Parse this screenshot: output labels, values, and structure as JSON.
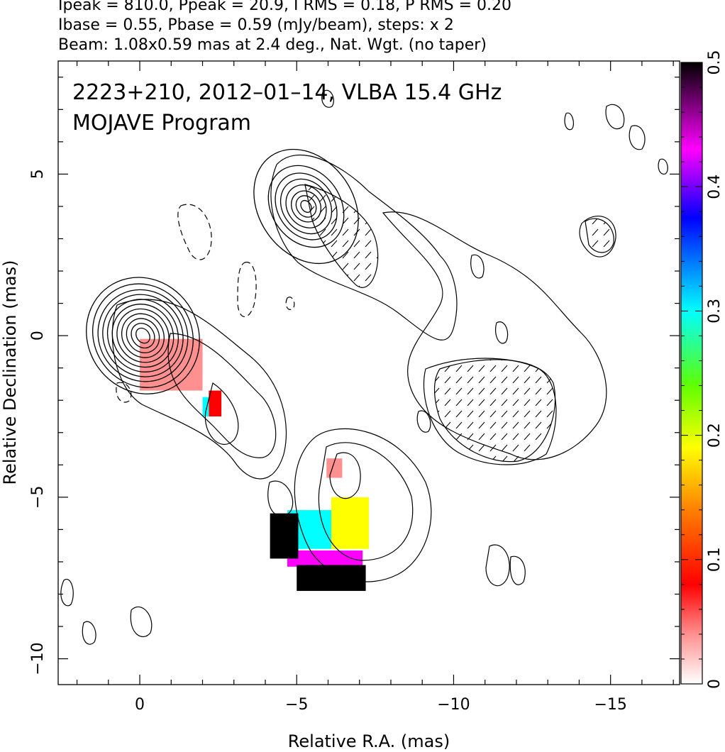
{
  "header": {
    "line1": "Ipeak = 810.0, Ppeak = 20.9, I RMS = 0.18, P RMS = 0.20",
    "line2": "Ibase = 0.55, Pbase = 0.59 (mJy/beam), steps: x 2",
    "line3": "Beam: 1.08x0.59 mas at 2.4 deg., Nat. Wgt. (no taper)"
  },
  "chart_data": {
    "type": "heatmap",
    "title": "2223+210, 2012–01–14, VLBA 15.4 GHz",
    "subtitle": "MOJAVE Program",
    "xlabel": "Relative R.A. (mas)",
    "ylabel": "Relative Declination (mas)",
    "xlim": [
      2.6,
      -17.2
    ],
    "ylim": [
      -10.8,
      8.5
    ],
    "x_ticks": [
      0,
      -5,
      -10,
      -15
    ],
    "x_tick_labels": [
      "0",
      "−5",
      "−10",
      "−15"
    ],
    "y_ticks": [
      5,
      0,
      -5,
      -10
    ],
    "y_tick_labels": [
      "5",
      "0",
      "−5",
      "−10"
    ],
    "colorbar": {
      "range": [
        0,
        0.5
      ],
      "ticks": [
        0,
        0.1,
        0.2,
        0.3,
        0.4,
        0.5
      ],
      "tick_labels": [
        "0",
        "0.1",
        "0.2",
        "0.3",
        "0.4",
        "0.5"
      ],
      "colormap": [
        "#ffffff",
        "#ff9090",
        "#ff0000",
        "#ff8000",
        "#ffff00",
        "#60ff00",
        "#00ffff",
        "#0000ff",
        "#ff00ff",
        "#000000"
      ]
    },
    "core_peak": {
      "x": -0.1,
      "y": 0.0
    },
    "contour_sources": [
      {
        "name": "core",
        "x": -0.1,
        "y": 0.0,
        "rx": [
          0.2,
          0.35,
          0.5,
          0.65,
          0.8,
          0.95,
          1.1,
          1.25,
          1.4,
          1.55,
          1.75
        ],
        "ry": [
          0.25,
          0.4,
          0.55,
          0.7,
          0.85,
          1.0,
          1.15,
          1.3,
          1.45,
          1.65,
          1.85
        ]
      },
      {
        "name": "northern-component",
        "x": -5.3,
        "y": 4.0,
        "rx": [
          0.15,
          0.3,
          0.45,
          0.6,
          0.75,
          0.9,
          1.1,
          1.5
        ],
        "ry": [
          0.2,
          0.35,
          0.5,
          0.7,
          0.9,
          1.1,
          1.35,
          1.9
        ]
      }
    ],
    "polarization_regions": [
      {
        "x": -1.0,
        "y": -0.9,
        "value": 0.04,
        "w": 2.0,
        "h": 1.6
      },
      {
        "x": -2.4,
        "y": -2.1,
        "value": 0.12,
        "w": 0.4,
        "h": 0.8
      },
      {
        "x": -2.1,
        "y": -2.2,
        "value": 0.32,
        "w": 0.2,
        "h": 0.6
      },
      {
        "x": -6.2,
        "y": -4.1,
        "value": 0.08,
        "w": 0.5,
        "h": 0.6
      },
      {
        "x": -5.5,
        "y": -6.0,
        "value": 0.34,
        "w": 1.6,
        "h": 1.2
      },
      {
        "x": -6.7,
        "y": -5.8,
        "value": 0.22,
        "w": 1.2,
        "h": 1.6
      },
      {
        "x": -5.9,
        "y": -6.9,
        "value": 0.42,
        "w": 2.4,
        "h": 0.5
      },
      {
        "x": -6.1,
        "y": -7.5,
        "value": 0.5,
        "w": 2.2,
        "h": 0.8
      },
      {
        "x": -4.6,
        "y": -6.2,
        "value": 0.5,
        "w": 0.9,
        "h": 1.4
      }
    ],
    "grid": false
  }
}
